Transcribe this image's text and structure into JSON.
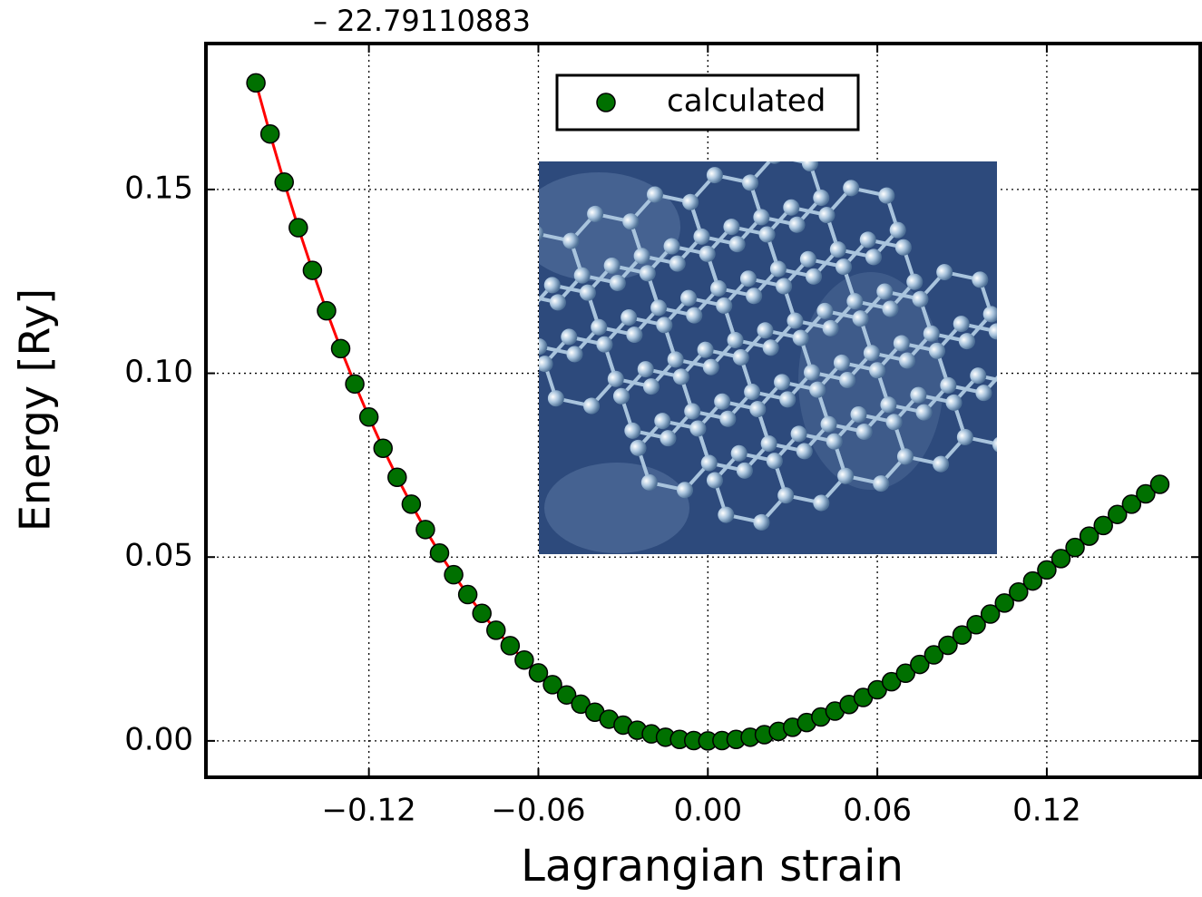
{
  "chart_data": {
    "type": "scatter",
    "offset_label": "– 22.79110883",
    "x_label": "Lagrangian strain",
    "y_label": "Energy [Ry]",
    "legend_position": "upper center",
    "grid": true,
    "fit_line_color": "#ff0000",
    "x": [
      -0.16,
      -0.155,
      -0.15,
      -0.145,
      -0.14,
      -0.135,
      -0.13,
      -0.125,
      -0.12,
      -0.115,
      -0.11,
      -0.105,
      -0.1,
      -0.095,
      -0.09,
      -0.085,
      -0.08,
      -0.075,
      -0.07,
      -0.065,
      -0.06,
      -0.055,
      -0.05,
      -0.045,
      -0.04,
      -0.035,
      -0.03,
      -0.025,
      -0.02,
      -0.015,
      -0.01,
      -0.005,
      0,
      0.005,
      0.01,
      0.015,
      0.02,
      0.025,
      0.03,
      0.035,
      0.04,
      0.045,
      0.05,
      0.055,
      0.06,
      0.065,
      0.07,
      0.075,
      0.08,
      0.085,
      0.09,
      0.095,
      0.1,
      0.105,
      0.11,
      0.115,
      0.12,
      0.125,
      0.13,
      0.135,
      0.14,
      0.145,
      0.15,
      0.155,
      0.16
    ],
    "series": [
      {
        "name": "calculated",
        "color": "#007000",
        "values": [
          0.179,
          0.1651,
          0.152,
          0.1396,
          0.128,
          0.117,
          0.1067,
          0.0971,
          0.0881,
          0.0796,
          0.0717,
          0.0644,
          0.0575,
          0.0511,
          0.0452,
          0.0398,
          0.0347,
          0.0301,
          0.0259,
          0.022,
          0.0185,
          0.0153,
          0.0125,
          0.01,
          0.0078,
          0.0059,
          0.0043,
          0.0029,
          0.0019,
          0.001,
          0.0004,
          0.0001,
          0,
          0.0001,
          0.0004,
          0.001,
          0.0017,
          0.0026,
          0.0037,
          0.005,
          0.0065,
          0.0081,
          0.0099,
          0.0118,
          0.0139,
          0.0161,
          0.0184,
          0.0208,
          0.0234,
          0.026,
          0.0288,
          0.0316,
          0.0345,
          0.0375,
          0.0405,
          0.0435,
          0.0465,
          0.0496,
          0.0526,
          0.0557,
          0.0586,
          0.0616,
          0.0644,
          0.0672,
          0.0698
        ]
      }
    ],
    "xlim": [
      -0.1777,
      0.1743
    ],
    "ylim": [
      -0.0099,
      0.1897
    ],
    "xticks": [
      {
        "value": -0.12,
        "label": "−0.12"
      },
      {
        "value": -0.06,
        "label": "−0.06"
      },
      {
        "value": 0,
        "label": "0.00"
      },
      0.06,
      0.12
    ],
    "yticks": [
      {
        "value": 0,
        "label": "0.00"
      },
      0.05,
      {
        "value": 0.1,
        "label": "0.10"
      },
      0.15
    ]
  }
}
